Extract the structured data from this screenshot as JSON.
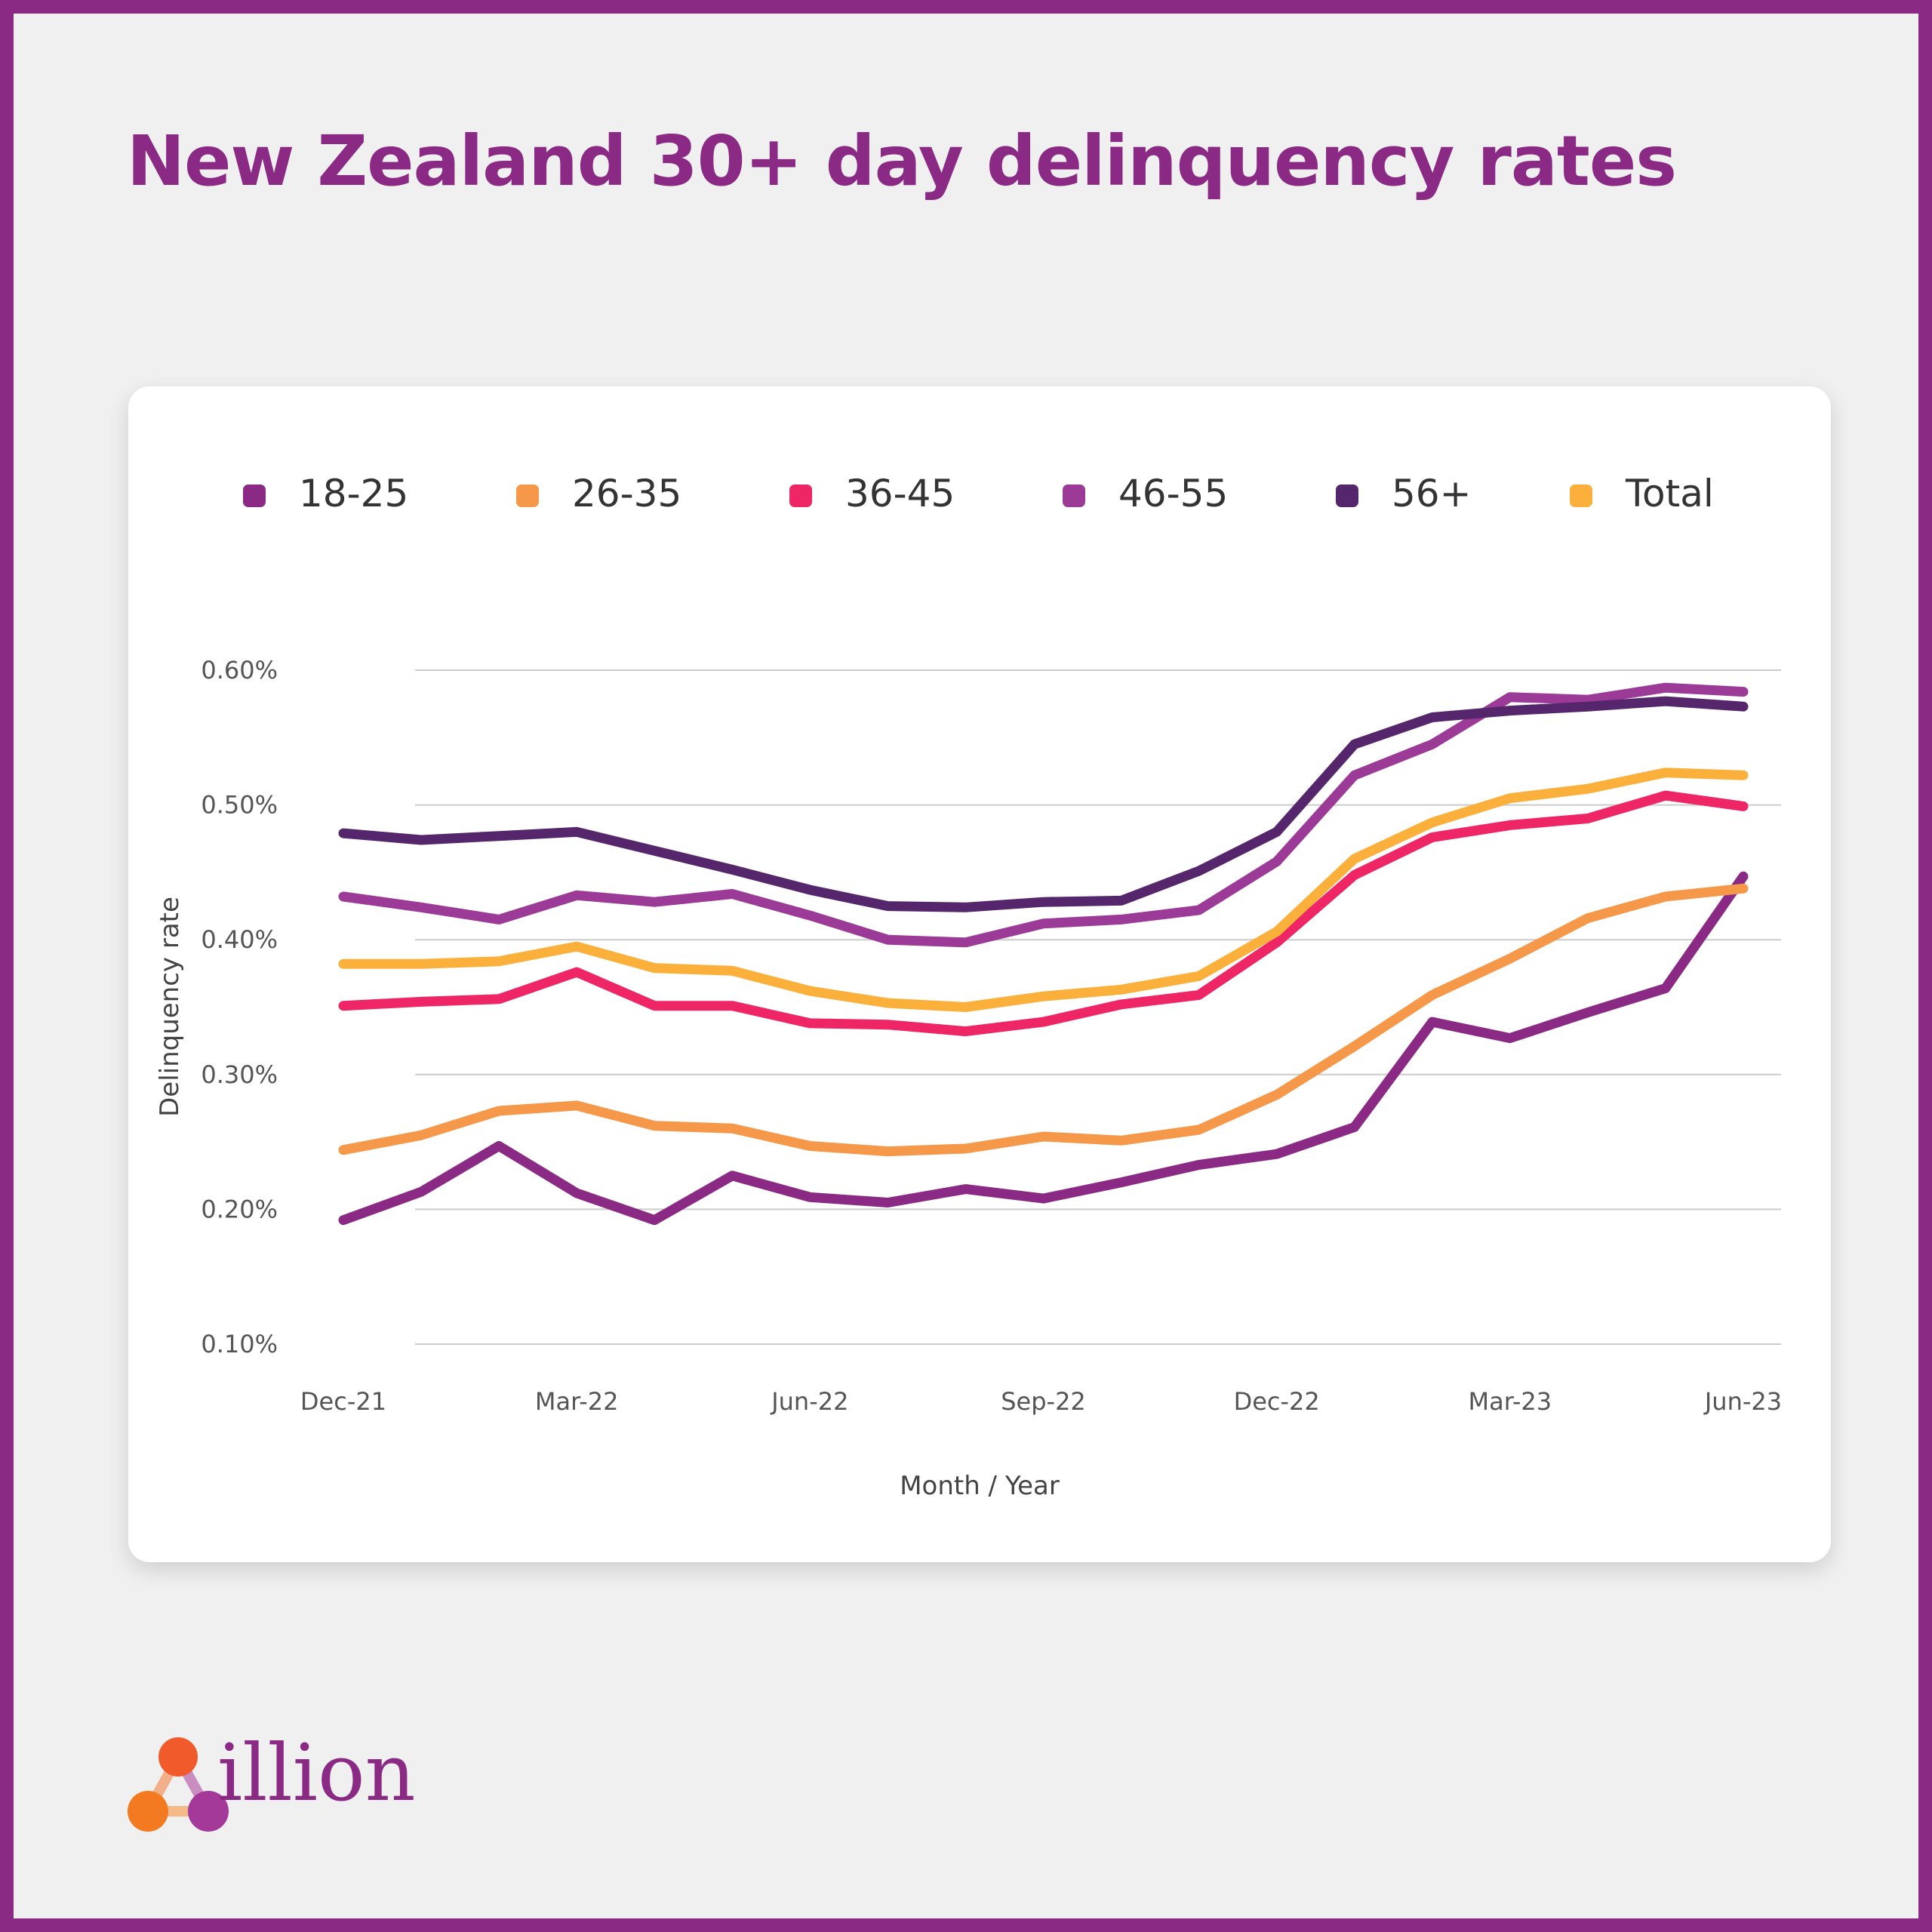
{
  "page": {
    "title": "New Zealand 30+ day delinquency rates",
    "brand": "illion",
    "frame_color": "#8b2a84"
  },
  "chart_data": {
    "type": "line",
    "title": "",
    "xlabel": "Month / Year",
    "ylabel": "Delinquency rate",
    "ylim": [
      0.1,
      0.6
    ],
    "yticks": [
      "0.10%",
      "0.20%",
      "0.30%",
      "0.40%",
      "0.50%",
      "0.60%"
    ],
    "ytick_values": [
      0.1,
      0.2,
      0.3,
      0.4,
      0.5,
      0.6
    ],
    "grid": true,
    "legend_position": "top",
    "x": [
      "Dec-21",
      "Jan-22",
      "Feb-22",
      "Mar-22",
      "Apr-22",
      "May-22",
      "Jun-22",
      "Jul-22",
      "Aug-22",
      "Sep-22",
      "Oct-22",
      "Nov-22",
      "Dec-22",
      "Jan-23",
      "Feb-23",
      "Mar-23",
      "Apr-23",
      "May-23",
      "Jun-23"
    ],
    "xtick_labels": [
      "Dec-21",
      "Mar-22",
      "Jun-22",
      "Sep-22",
      "Dec-22",
      "Mar-23",
      "Jun-23"
    ],
    "xtick_index": [
      0,
      3,
      6,
      9,
      12,
      15,
      18
    ],
    "series": [
      {
        "name": "18-25",
        "color": "#8b2a84",
        "values": [
          0.192,
          0.213,
          0.247,
          0.212,
          0.192,
          0.225,
          0.209,
          0.205,
          0.215,
          0.208,
          0.22,
          0.233,
          0.241,
          0.261,
          0.339,
          0.327,
          0.346,
          0.364,
          0.447
        ]
      },
      {
        "name": "26-35",
        "color": "#f5984a",
        "values": [
          0.244,
          0.255,
          0.273,
          0.277,
          0.262,
          0.26,
          0.247,
          0.243,
          0.245,
          0.254,
          0.251,
          0.259,
          0.285,
          0.321,
          0.359,
          0.386,
          0.416,
          0.432,
          0.438
        ]
      },
      {
        "name": "36-45",
        "color": "#ee2666",
        "values": [
          0.351,
          0.354,
          0.356,
          0.376,
          0.351,
          0.351,
          0.338,
          0.337,
          0.332,
          0.339,
          0.352,
          0.359,
          0.398,
          0.448,
          0.476,
          0.485,
          0.49,
          0.507,
          0.499
        ]
      },
      {
        "name": "46-55",
        "color": "#9b3a97",
        "values": [
          0.432,
          0.424,
          0.415,
          0.433,
          0.428,
          0.434,
          0.418,
          0.4,
          0.398,
          0.412,
          0.415,
          0.422,
          0.458,
          0.522,
          0.545,
          0.58,
          0.578,
          0.587,
          0.584
        ]
      },
      {
        "name": "56+",
        "color": "#56266d",
        "values": [
          0.479,
          0.474,
          0.477,
          0.48,
          0.466,
          0.452,
          0.437,
          0.425,
          0.424,
          0.428,
          0.429,
          0.451,
          0.48,
          0.545,
          0.565,
          0.57,
          0.573,
          0.577,
          0.573
        ]
      },
      {
        "name": "Total",
        "color": "#fbb03b",
        "values": [
          0.382,
          0.382,
          0.384,
          0.395,
          0.379,
          0.377,
          0.362,
          0.353,
          0.35,
          0.358,
          0.363,
          0.373,
          0.406,
          0.46,
          0.487,
          0.505,
          0.512,
          0.524,
          0.522
        ]
      }
    ]
  }
}
